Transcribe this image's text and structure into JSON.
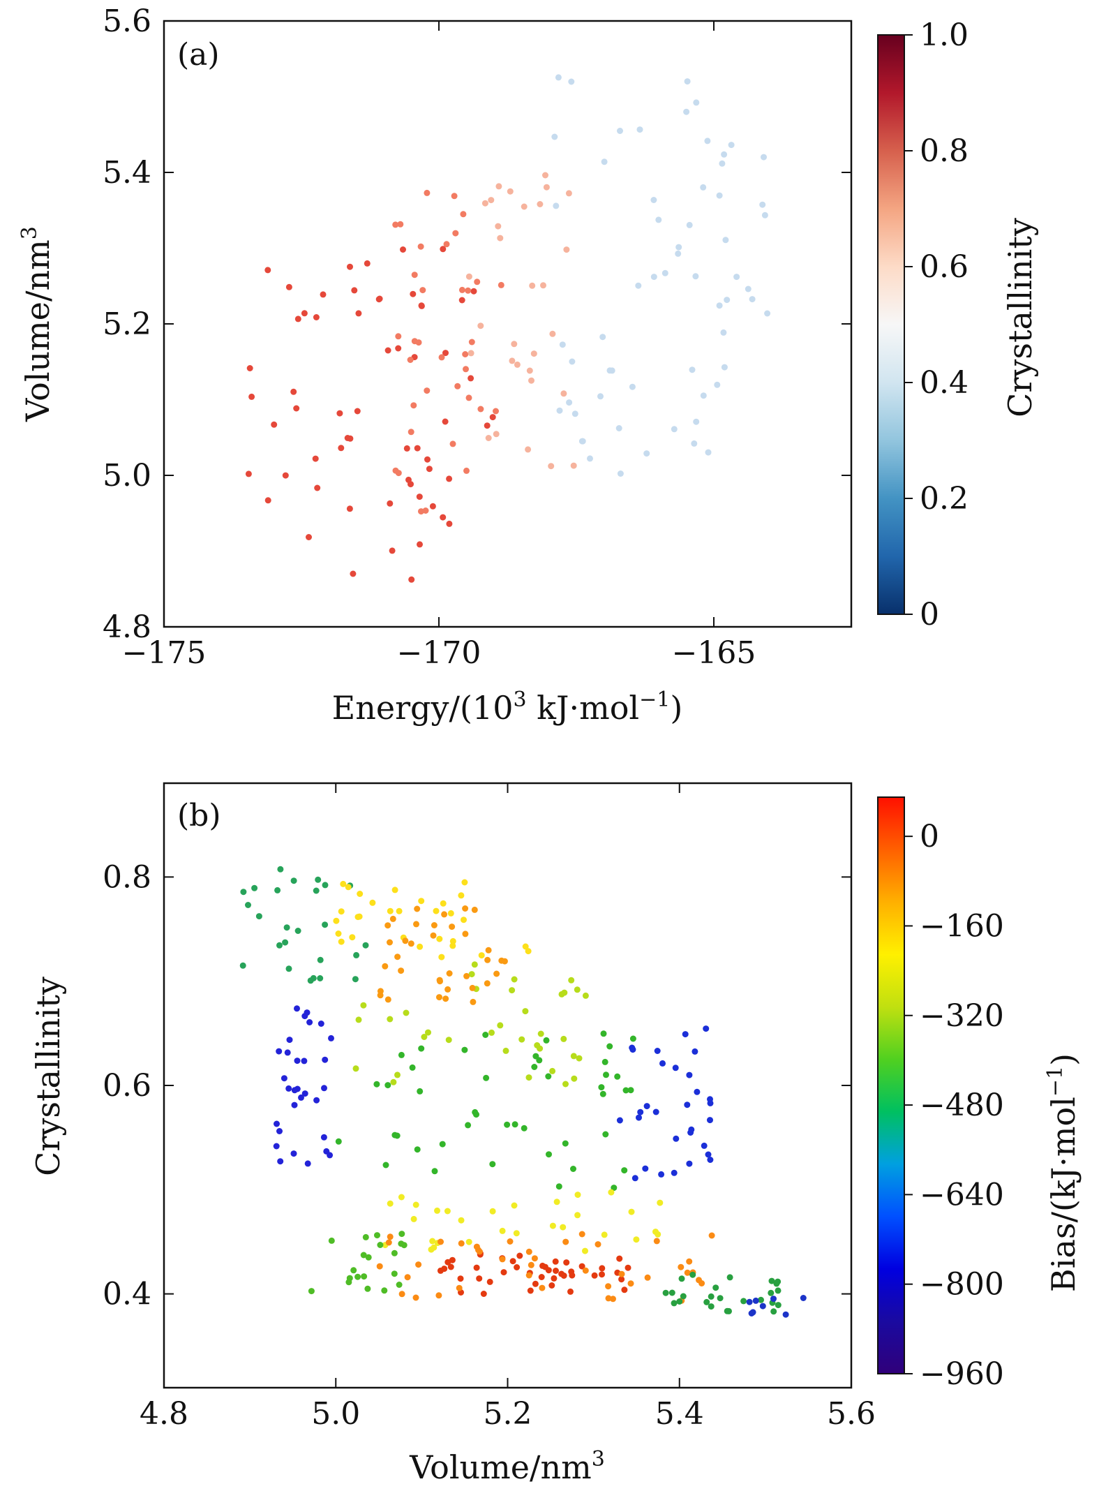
{
  "chart_data": [
    {
      "panel": "(a)",
      "type": "scatter",
      "title": "",
      "xlabel_base": "Energy/(10",
      "xlabel_exp": "3",
      "xlabel_unit": " kJ·mol",
      "xlabel_unit_exp": "−1",
      "xlabel_tail": ")",
      "ylabel_base": "Volume/nm",
      "ylabel_exp": "3",
      "xlim": [
        -175,
        -162.5
      ],
      "ylim": [
        4.8,
        5.6
      ],
      "xticks": [
        {
          "value": -175,
          "label": "−175"
        },
        {
          "value": -170,
          "label": "−170"
        },
        {
          "value": -165,
          "label": "−165"
        }
      ],
      "yticks": [
        {
          "value": 4.8,
          "label": "4.8"
        },
        {
          "value": 5.0,
          "label": "5.0"
        },
        {
          "value": 5.2,
          "label": "5.2"
        },
        {
          "value": 5.4,
          "label": "5.4"
        },
        {
          "value": 5.6,
          "label": "5.6"
        }
      ],
      "colorbar": {
        "label": "Crystallinity",
        "colormap": "RdBu_r",
        "range": [
          0,
          1.0
        ],
        "ticks": [
          {
            "value": 0,
            "label": "0"
          },
          {
            "value": 0.2,
            "label": "0.2"
          },
          {
            "value": 0.4,
            "label": "0.4"
          },
          {
            "value": 0.6,
            "label": "0.6"
          },
          {
            "value": 0.8,
            "label": "0.8"
          },
          {
            "value": 1.0,
            "label": "1.0"
          }
        ]
      },
      "point_groups": [
        {
          "color": "#e5483a",
          "x_range": [
            -173.5,
            -169.0
          ],
          "y_range": [
            4.86,
            5.3
          ],
          "count": 60
        },
        {
          "color": "#f27b62",
          "x_range": [
            -171.0,
            -168.8
          ],
          "y_range": [
            4.95,
            5.38
          ],
          "count": 35
        },
        {
          "color": "#f6b39d",
          "x_range": [
            -169.5,
            -167.5
          ],
          "y_range": [
            5.0,
            5.4
          ],
          "count": 30
        },
        {
          "color": "#c6dbee",
          "x_range": [
            -168.0,
            -164.0
          ],
          "y_range": [
            5.0,
            5.53
          ],
          "count": 60
        }
      ]
    },
    {
      "panel": "(b)",
      "type": "scatter",
      "title": "",
      "xlabel_base": "Volume/nm",
      "xlabel_exp": "3",
      "ylabel": "Crystallinity",
      "xlim": [
        4.8,
        5.6
      ],
      "ylim": [
        0.31,
        0.89
      ],
      "xticks": [
        {
          "value": 4.8,
          "label": "4.8"
        },
        {
          "value": 5.0,
          "label": "5.0"
        },
        {
          "value": 5.2,
          "label": "5.2"
        },
        {
          "value": 5.4,
          "label": "5.4"
        },
        {
          "value": 5.6,
          "label": "5.6"
        }
      ],
      "yticks": [
        {
          "value": 0.4,
          "label": "0.4"
        },
        {
          "value": 0.6,
          "label": "0.6"
        },
        {
          "value": 0.8,
          "label": "0.8"
        }
      ],
      "colorbar": {
        "label_base": "Bias/(kJ·mol",
        "label_exp": "−1",
        "label_tail": ")",
        "colormap": "jet",
        "range": [
          -960,
          70
        ],
        "ticks": [
          {
            "value": -960,
            "label": "−960"
          },
          {
            "value": -800,
            "label": "−800"
          },
          {
            "value": -640,
            "label": "−640"
          },
          {
            "value": -480,
            "label": "−480"
          },
          {
            "value": -320,
            "label": "−320"
          },
          {
            "value": -160,
            "label": "−160"
          },
          {
            "value": 0,
            "label": "0"
          }
        ]
      },
      "point_groups": [
        {
          "color": "#2323d8",
          "x_range": [
            4.93,
            5.0
          ],
          "y_range": [
            0.52,
            0.68
          ],
          "count": 30
        },
        {
          "color": "#1b2fd8",
          "x_range": [
            5.33,
            5.44
          ],
          "y_range": [
            0.51,
            0.66
          ],
          "count": 30
        },
        {
          "color": "#27a35a",
          "x_range": [
            4.88,
            5.05
          ],
          "y_range": [
            0.7,
            0.81
          ],
          "count": 25
        },
        {
          "color": "#33b52a",
          "x_range": [
            5.0,
            5.35
          ],
          "y_range": [
            0.5,
            0.65
          ],
          "count": 45
        },
        {
          "color": "#b7dc1b",
          "x_range": [
            5.0,
            5.3
          ],
          "y_range": [
            0.6,
            0.72
          ],
          "count": 35
        },
        {
          "color": "#fde01b",
          "x_range": [
            5.0,
            5.25
          ],
          "y_range": [
            0.72,
            0.8
          ],
          "count": 30
        },
        {
          "color": "#fa9a12",
          "x_range": [
            5.05,
            5.2
          ],
          "y_range": [
            0.68,
            0.78
          ],
          "count": 35
        },
        {
          "color": "#f1ec25",
          "x_range": [
            5.05,
            5.4
          ],
          "y_range": [
            0.44,
            0.5
          ],
          "count": 30
        },
        {
          "color": "#4fbc26",
          "x_range": [
            4.97,
            5.08
          ],
          "y_range": [
            0.4,
            0.46
          ],
          "count": 20
        },
        {
          "color": "#e43a10",
          "x_range": [
            5.12,
            5.35
          ],
          "y_range": [
            0.4,
            0.44
          ],
          "count": 45
        },
        {
          "color": "#fb8b14",
          "x_range": [
            5.05,
            5.45
          ],
          "y_range": [
            0.39,
            0.46
          ],
          "count": 40
        },
        {
          "color": "#28a040",
          "x_range": [
            5.38,
            5.52
          ],
          "y_range": [
            0.38,
            0.42
          ],
          "count": 25
        },
        {
          "color": "#1c34c8",
          "x_range": [
            5.48,
            5.55
          ],
          "y_range": [
            0.38,
            0.4
          ],
          "count": 8
        }
      ]
    }
  ]
}
